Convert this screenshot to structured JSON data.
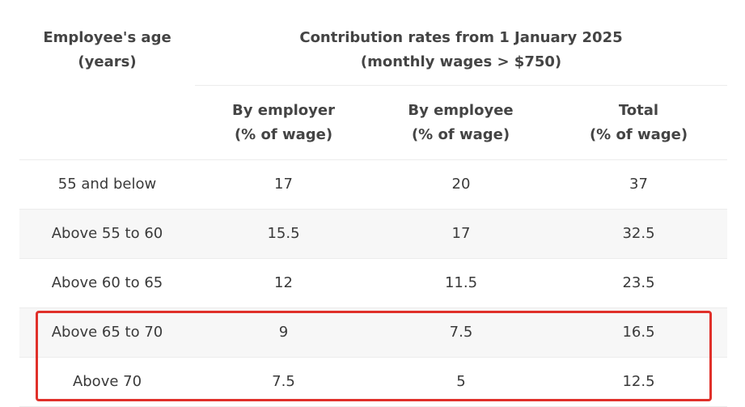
{
  "header": {
    "age_line1": "Employee's age",
    "age_line2": "(years)",
    "contrib_line1": "Contribution rates from 1 January 2025",
    "contrib_line2": "(monthly wages > $750)",
    "employer_line1": "By employer",
    "employer_line2": "(% of wage)",
    "employee_line1": "By employee",
    "employee_line2": "(% of wage)",
    "total_line1": "Total",
    "total_line2": "(% of wage)"
  },
  "rows": [
    {
      "age": "55 and below",
      "employer": "17",
      "employee": "20",
      "total": "37"
    },
    {
      "age": "Above 55 to 60",
      "employer": "15.5",
      "employee": "17",
      "total": "32.5"
    },
    {
      "age": "Above 60 to 65",
      "employer": "12",
      "employee": "11.5",
      "total": "23.5"
    },
    {
      "age": "Above 65 to 70",
      "employer": "9",
      "employee": "7.5",
      "total": "16.5"
    },
    {
      "age": "Above 70",
      "employer": "7.5",
      "employee": "5",
      "total": "12.5"
    }
  ],
  "colors": {
    "highlight": "#e0302a",
    "row_shade": "#f7f7f7"
  }
}
